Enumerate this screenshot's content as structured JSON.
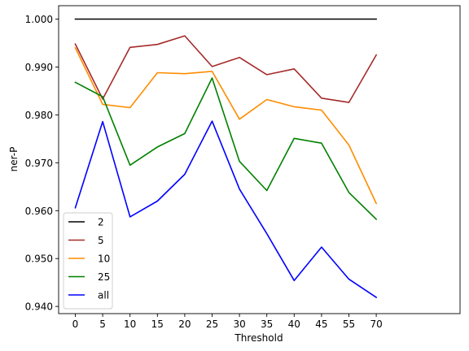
{
  "chart_data": {
    "type": "line",
    "title": "",
    "xlabel": "Threshold",
    "ylabel": "ner-P",
    "x": [
      0,
      5,
      10,
      15,
      20,
      25,
      30,
      35,
      40,
      45,
      55,
      70
    ],
    "xtick_labels": [
      "0",
      "5",
      "10",
      "15",
      "20",
      "25",
      "30",
      "35",
      "40",
      "45",
      "55",
      "70"
    ],
    "yticks": [
      0.94,
      0.95,
      0.96,
      0.97,
      0.98,
      0.99,
      1.0
    ],
    "ytick_labels": [
      "0.940",
      "0.950",
      "0.960",
      "0.970",
      "0.980",
      "0.990",
      "1.000"
    ],
    "ylim": [
      0.9385,
      1.0028
    ],
    "grid": false,
    "legend_position": "lower-left",
    "series": [
      {
        "name": "2",
        "color": "#000000",
        "values": [
          1.0,
          1.0,
          1.0,
          1.0,
          1.0,
          1.0,
          1.0,
          1.0,
          1.0,
          1.0,
          1.0,
          1.0
        ]
      },
      {
        "name": "5",
        "color": "#a52a2a",
        "values": [
          0.9948,
          0.9833,
          0.9941,
          0.9947,
          0.9965,
          0.9901,
          0.992,
          0.9884,
          0.9896,
          0.9835,
          0.9826,
          0.9925
        ]
      },
      {
        "name": "10",
        "color": "#ff8c00",
        "values": [
          0.994,
          0.9822,
          0.9815,
          0.9888,
          0.9886,
          0.9891,
          0.9791,
          0.9832,
          0.9817,
          0.981,
          0.9737,
          0.9615
        ]
      },
      {
        "name": "25",
        "color": "#008000",
        "values": [
          0.9868,
          0.9838,
          0.9695,
          0.9733,
          0.9761,
          0.9877,
          0.9703,
          0.9642,
          0.9751,
          0.9741,
          0.9638,
          0.9582
        ]
      },
      {
        "name": "all",
        "color": "#0000ff",
        "values": [
          0.9606,
          0.9786,
          0.9587,
          0.962,
          0.9676,
          0.9787,
          0.9645,
          0.9552,
          0.9454,
          0.9524,
          0.9457,
          0.9419
        ]
      }
    ]
  }
}
